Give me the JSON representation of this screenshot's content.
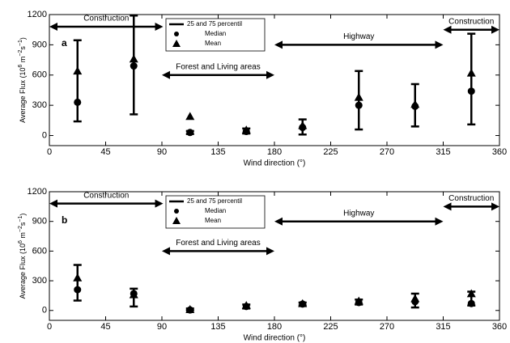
{
  "chart_data": [
    {
      "type": "errorbar",
      "panel_label": "a",
      "xlabel": "Wind direction (°)",
      "ylabel": [
        "Average Flux (10",
        "6",
        " m",
        "−2",
        "s",
        "−1",
        ")"
      ],
      "x": [
        22.5,
        67.5,
        112.5,
        157.5,
        202.5,
        247.5,
        292.5,
        337.5
      ],
      "series": [
        {
          "name": "25 and 75 percentil",
          "low": [
            140,
            210,
            15,
            20,
            10,
            60,
            90,
            110
          ],
          "high": [
            945,
            1190,
            45,
            70,
            160,
            640,
            510,
            1010
          ]
        },
        {
          "name": "Median",
          "marker": "circle",
          "values": [
            330,
            690,
            30,
            40,
            80,
            300,
            290,
            440
          ]
        },
        {
          "name": "Mean",
          "marker": "triangle",
          "values": [
            640,
            760,
            190,
            55,
            100,
            380,
            310,
            620
          ]
        }
      ],
      "annotations": [
        {
          "text": "Construction",
          "x": [
            0,
            91
          ],
          "y": 1080
        },
        {
          "text": "Forest and Living areas",
          "x": [
            90,
            180
          ],
          "y": 600
        },
        {
          "text": "Highway",
          "x": [
            180,
            315
          ],
          "y": 900
        },
        {
          "text": "Construction",
          "x": [
            315,
            360
          ],
          "y": 1050
        }
      ],
      "xlim": [
        0,
        360
      ],
      "xticks": [
        0,
        45,
        90,
        135,
        180,
        225,
        270,
        315,
        360
      ],
      "ylim": [
        -100,
        1200
      ],
      "yticks": [
        0,
        300,
        600,
        900,
        1200
      ]
    },
    {
      "type": "errorbar",
      "panel_label": "b",
      "xlabel": "Wind direction (°)",
      "ylabel": [
        "Average Flux (10",
        "6",
        " m",
        "−2",
        "s",
        "−1",
        ")"
      ],
      "x": [
        22.5,
        67.5,
        112.5,
        157.5,
        202.5,
        247.5,
        292.5,
        337.5
      ],
      "series": [
        {
          "name": "25 and 75 percentil",
          "low": [
            100,
            40,
            0,
            20,
            50,
            60,
            30,
            50
          ],
          "high": [
            460,
            220,
            20,
            60,
            80,
            110,
            170,
            190
          ]
        },
        {
          "name": "Median",
          "marker": "circle",
          "values": [
            210,
            170,
            5,
            40,
            65,
            80,
            90,
            70
          ]
        },
        {
          "name": "Mean",
          "marker": "triangle",
          "values": [
            330,
            160,
            10,
            50,
            70,
            95,
            120,
            170
          ]
        }
      ],
      "annotations": [
        {
          "text": "Construction",
          "x": [
            0,
            91
          ],
          "y": 1080
        },
        {
          "text": "Forest and Living areas",
          "x": [
            90,
            180
          ],
          "y": 600
        },
        {
          "text": "Highway",
          "x": [
            180,
            315
          ],
          "y": 900
        },
        {
          "text": "Construction",
          "x": [
            315,
            360
          ],
          "y": 1050
        }
      ],
      "xlim": [
        0,
        360
      ],
      "xticks": [
        0,
        45,
        90,
        135,
        180,
        225,
        270,
        315,
        360
      ],
      "ylim": [
        -100,
        1200
      ],
      "yticks": [
        0,
        300,
        600,
        900,
        1200
      ]
    }
  ]
}
